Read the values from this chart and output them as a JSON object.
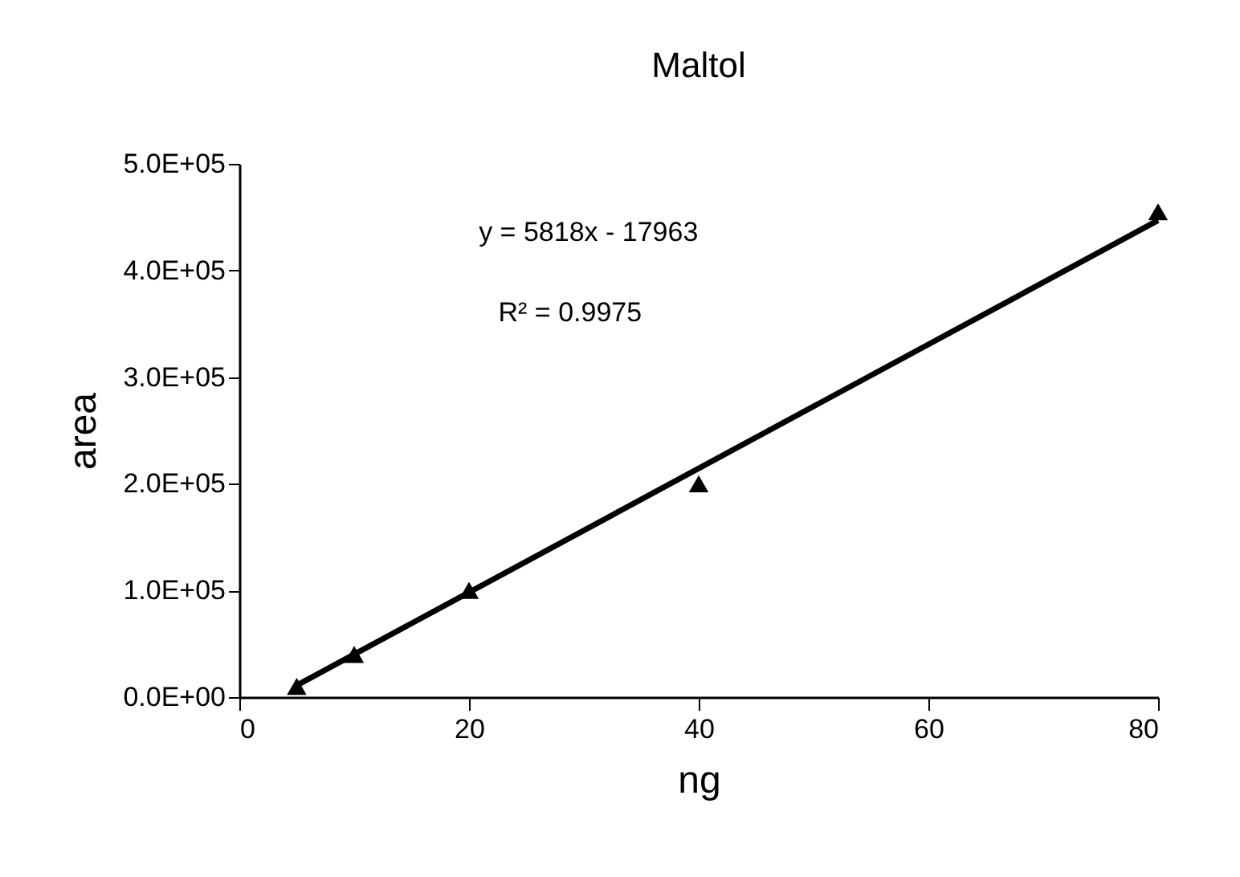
{
  "chart_data": {
    "type": "scatter",
    "title": "Maltol",
    "xlabel": "ng",
    "ylabel": "area",
    "xlim": [
      0,
      80
    ],
    "xticks": [
      0,
      20,
      40,
      60,
      80
    ],
    "ylim": [
      0,
      500000
    ],
    "yticks": [
      {
        "value": 0,
        "label": "0.0E+00"
      },
      {
        "value": 100000,
        "label": "1.0E+05"
      },
      {
        "value": 200000,
        "label": "2.0E+05"
      },
      {
        "value": 300000,
        "label": "3.0E+05"
      },
      {
        "value": 400000,
        "label": "4.0E+05"
      },
      {
        "value": 500000,
        "label": "5.0E+05"
      }
    ],
    "grid": false,
    "marker": "triangle",
    "series": [
      {
        "color": "#000000",
        "x": [
          5,
          10,
          20,
          40,
          80
        ],
        "values": [
          10000,
          40000,
          100000,
          200000,
          455000
        ]
      },
      {
        "type": "line",
        "color": "#000000",
        "marker": "none",
        "x": [
          5,
          80
        ],
        "values": [
          11000,
          447000
        ]
      }
    ],
    "annotations": [
      "y = 5818x - 17963",
      "R² = 0.9975"
    ]
  }
}
